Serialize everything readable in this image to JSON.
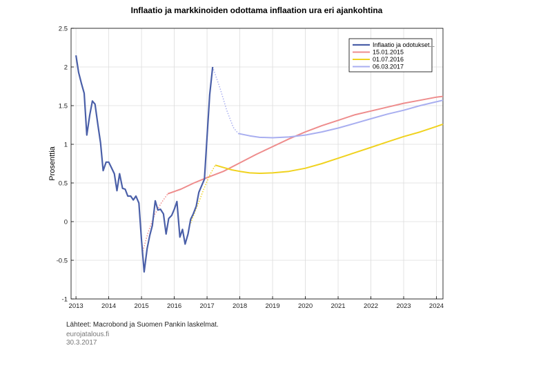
{
  "footer": {
    "source": "Lähteet: Macrobond ja Suomen Pankin laskelmat.",
    "site": "eurojatalous.fi",
    "date": "30.3.2017"
  },
  "chart_data": {
    "type": "line",
    "title": "Inflaatio ja markkinoiden odottama inflaation ura eri ajankohtina",
    "ylabel": "Prosenttia",
    "xlabel": "",
    "xlim": [
      2012.85,
      2024.2
    ],
    "ylim": [
      -1,
      2.5
    ],
    "x_ticks": [
      2013,
      2014,
      2015,
      2016,
      2017,
      2018,
      2019,
      2020,
      2021,
      2022,
      2023,
      2024
    ],
    "y_ticks": [
      -1,
      -0.5,
      0,
      0.5,
      1,
      1.5,
      2,
      2.5
    ],
    "grid": true,
    "legend_position": "top-right",
    "series": [
      {
        "name": "Inflaatio ja odotukset...",
        "color": "#4a5fa8",
        "style": "solid",
        "width": 2.2,
        "points": [
          [
            2013.0,
            2.15
          ],
          [
            2013.08,
            1.93
          ],
          [
            2013.17,
            1.78
          ],
          [
            2013.25,
            1.66
          ],
          [
            2013.33,
            1.12
          ],
          [
            2013.42,
            1.38
          ],
          [
            2013.5,
            1.56
          ],
          [
            2013.58,
            1.52
          ],
          [
            2013.67,
            1.25
          ],
          [
            2013.75,
            1.02
          ],
          [
            2013.83,
            0.66
          ],
          [
            2013.92,
            0.77
          ],
          [
            2014.0,
            0.77
          ],
          [
            2014.08,
            0.7
          ],
          [
            2014.17,
            0.62
          ],
          [
            2014.25,
            0.4
          ],
          [
            2014.33,
            0.62
          ],
          [
            2014.42,
            0.43
          ],
          [
            2014.5,
            0.42
          ],
          [
            2014.58,
            0.33
          ],
          [
            2014.67,
            0.33
          ],
          [
            2014.75,
            0.28
          ],
          [
            2014.83,
            0.33
          ],
          [
            2014.92,
            0.24
          ],
          [
            2015.0,
            -0.24
          ],
          [
            2015.08,
            -0.65
          ],
          [
            2015.17,
            -0.35
          ],
          [
            2015.25,
            -0.18
          ],
          [
            2015.33,
            -0.05
          ],
          [
            2015.42,
            0.27
          ],
          [
            2015.5,
            0.15
          ],
          [
            2015.58,
            0.16
          ],
          [
            2015.67,
            0.1
          ],
          [
            2015.75,
            -0.16
          ],
          [
            2015.83,
            0.04
          ],
          [
            2015.92,
            0.08
          ],
          [
            2016.0,
            0.16
          ],
          [
            2016.08,
            0.26
          ],
          [
            2016.17,
            -0.2
          ],
          [
            2016.25,
            -0.1
          ],
          [
            2016.33,
            -0.29
          ],
          [
            2016.42,
            -0.16
          ],
          [
            2016.5,
            0.03
          ],
          [
            2016.58,
            0.1
          ],
          [
            2016.67,
            0.2
          ],
          [
            2016.75,
            0.38
          ],
          [
            2016.83,
            0.46
          ],
          [
            2016.92,
            0.55
          ],
          [
            2017.0,
            1.1
          ],
          [
            2017.08,
            1.64
          ],
          [
            2017.17,
            2.0
          ]
        ]
      },
      {
        "name": "15.01.2015",
        "color": "#ee8c8c",
        "style": "solid",
        "width": 2,
        "dotted_points": [
          [
            2015.04,
            -0.38
          ],
          [
            2015.2,
            -0.14
          ],
          [
            2015.4,
            0.09
          ],
          [
            2015.6,
            0.24
          ],
          [
            2015.8,
            0.36
          ]
        ],
        "points": [
          [
            2015.8,
            0.36
          ],
          [
            2016.2,
            0.42
          ],
          [
            2016.6,
            0.5
          ],
          [
            2017.0,
            0.57
          ],
          [
            2017.5,
            0.65
          ],
          [
            2018.0,
            0.76
          ],
          [
            2018.5,
            0.87
          ],
          [
            2019.0,
            0.97
          ],
          [
            2019.5,
            1.07
          ],
          [
            2020.0,
            1.16
          ],
          [
            2020.5,
            1.24
          ],
          [
            2021.0,
            1.31
          ],
          [
            2021.5,
            1.38
          ],
          [
            2022.0,
            1.43
          ],
          [
            2022.5,
            1.48
          ],
          [
            2023.0,
            1.53
          ],
          [
            2023.5,
            1.57
          ],
          [
            2024.0,
            1.61
          ],
          [
            2024.2,
            1.62
          ]
        ]
      },
      {
        "name": "01.07.2016",
        "color": "#f0d21e",
        "style": "solid",
        "width": 2,
        "dotted_points": [
          [
            2016.5,
            -0.02
          ],
          [
            2016.7,
            0.2
          ],
          [
            2016.9,
            0.42
          ],
          [
            2017.08,
            0.6
          ],
          [
            2017.25,
            0.73
          ]
        ],
        "points": [
          [
            2017.25,
            0.73
          ],
          [
            2017.5,
            0.7
          ],
          [
            2017.75,
            0.67
          ],
          [
            2018.0,
            0.65
          ],
          [
            2018.3,
            0.63
          ],
          [
            2018.6,
            0.625
          ],
          [
            2019.0,
            0.63
          ],
          [
            2019.5,
            0.65
          ],
          [
            2020.0,
            0.69
          ],
          [
            2020.5,
            0.75
          ],
          [
            2021.0,
            0.82
          ],
          [
            2021.5,
            0.89
          ],
          [
            2022.0,
            0.96
          ],
          [
            2022.5,
            1.03
          ],
          [
            2023.0,
            1.1
          ],
          [
            2023.5,
            1.16
          ],
          [
            2024.0,
            1.23
          ],
          [
            2024.2,
            1.26
          ]
        ]
      },
      {
        "name": "06.03.2017",
        "color": "#a8aef0",
        "style": "solid",
        "width": 2,
        "dotted_points": [
          [
            2017.17,
            2.0
          ],
          [
            2017.4,
            1.72
          ],
          [
            2017.6,
            1.44
          ],
          [
            2017.8,
            1.22
          ],
          [
            2017.95,
            1.14
          ]
        ],
        "points": [
          [
            2017.95,
            1.14
          ],
          [
            2018.3,
            1.11
          ],
          [
            2018.6,
            1.09
          ],
          [
            2019.0,
            1.085
          ],
          [
            2019.5,
            1.095
          ],
          [
            2020.0,
            1.12
          ],
          [
            2020.5,
            1.16
          ],
          [
            2021.0,
            1.21
          ],
          [
            2021.5,
            1.27
          ],
          [
            2022.0,
            1.33
          ],
          [
            2022.5,
            1.39
          ],
          [
            2023.0,
            1.44
          ],
          [
            2023.5,
            1.5
          ],
          [
            2024.0,
            1.55
          ],
          [
            2024.2,
            1.57
          ]
        ]
      }
    ]
  }
}
